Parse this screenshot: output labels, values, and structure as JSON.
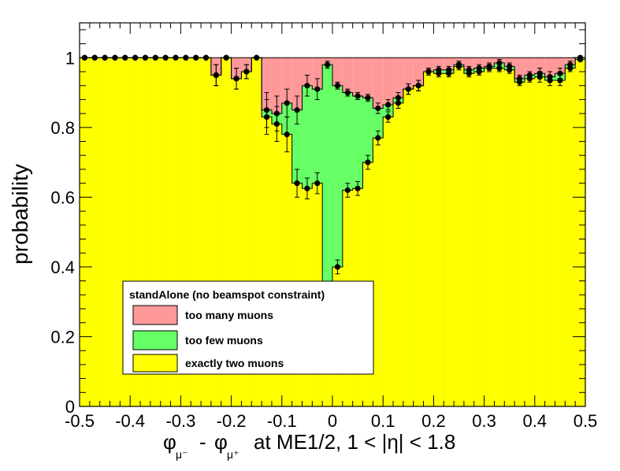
{
  "chart_data": {
    "type": "area",
    "xlabel": "at ME1/2, 1 < |η| < 1.8",
    "xlabel_phi_minus": "φ",
    "xlabel_mu_minus_sub": "μ⁻",
    "xlabel_dash": "-",
    "xlabel_phi_plus": "φ",
    "xlabel_mu_plus_sub": "μ⁺",
    "ylabel": "probability",
    "xlim": [
      -0.5,
      0.5
    ],
    "ylim": [
      0,
      1.1
    ],
    "x_ticks": [
      -0.5,
      -0.4,
      -0.3,
      -0.2,
      -0.1,
      0,
      0.1,
      0.2,
      0.3,
      0.4,
      0.5
    ],
    "x_tick_labels": [
      "-0.5",
      "-0.4",
      "-0.3",
      "-0.2",
      "-0.1",
      "0",
      "0.1",
      "0.2",
      "0.3",
      "0.4",
      "0.5"
    ],
    "y_ticks": [
      0,
      0.2,
      0.4,
      0.6,
      0.8,
      1
    ],
    "y_tick_labels": [
      "0",
      "0.2",
      "0.4",
      "0.6",
      "0.8",
      "1"
    ],
    "legend": {
      "title": "standAlone (no beamspot constraint)",
      "placement": "bottom-left",
      "entries": [
        {
          "label": "too many muons",
          "color": "#ff9999"
        },
        {
          "label": "too few muons",
          "color": "#66ff66"
        },
        {
          "label": "exactly two muons",
          "color": "#ffff00"
        }
      ]
    },
    "bin_width": 0.02,
    "x": [
      -0.49,
      -0.47,
      -0.45,
      -0.43,
      -0.41,
      -0.39,
      -0.37,
      -0.35,
      -0.33,
      -0.31,
      -0.29,
      -0.27,
      -0.25,
      -0.23,
      -0.21,
      -0.19,
      -0.17,
      -0.15,
      -0.13,
      -0.11,
      -0.09,
      -0.07,
      -0.05,
      -0.03,
      -0.01,
      0.01,
      0.03,
      0.05,
      0.07,
      0.09,
      0.11,
      0.13,
      0.15,
      0.17,
      0.19,
      0.21,
      0.23,
      0.25,
      0.27,
      0.29,
      0.31,
      0.33,
      0.35,
      0.37,
      0.39,
      0.41,
      0.43,
      0.45,
      0.47,
      0.49
    ],
    "series": [
      {
        "name": "exactly two muons",
        "color": "#ffff00",
        "values": [
          1,
          1,
          1,
          1,
          1,
          1,
          1,
          1,
          1,
          1,
          1,
          1,
          1,
          0.95,
          1,
          0.94,
          0.96,
          1,
          0.83,
          0.81,
          0.78,
          0.64,
          0.625,
          0.64,
          0.22,
          0.4,
          0.62,
          0.625,
          0.7,
          0.77,
          0.83,
          0.87,
          0.91,
          0.92,
          0.96,
          0.955,
          0.955,
          0.975,
          0.955,
          0.96,
          0.97,
          0.97,
          0.965,
          0.93,
          0.94,
          0.945,
          0.935,
          0.935,
          0.97,
          0.995
        ],
        "errors": [
          0,
          0,
          0,
          0,
          0,
          0,
          0,
          0,
          0,
          0,
          0,
          0,
          0,
          0.03,
          0,
          0.03,
          0.02,
          0,
          0.05,
          0.05,
          0.05,
          0.04,
          0.03,
          0.03,
          0.02,
          0.02,
          0.02,
          0.02,
          0.02,
          0.02,
          0.015,
          0.015,
          0.015,
          0.015,
          0.01,
          0.01,
          0.01,
          0.01,
          0.01,
          0.01,
          0.01,
          0.01,
          0.01,
          0.01,
          0.01,
          0.015,
          0.015,
          0.015,
          0.01,
          0.005
        ]
      },
      {
        "name": "too few muons",
        "color": "#66ff66",
        "values": [
          1,
          1,
          1,
          1,
          1,
          1,
          1,
          1,
          1,
          1,
          1,
          1,
          1,
          0.95,
          1,
          0.94,
          0.96,
          1,
          0.85,
          0.84,
          0.87,
          0.85,
          0.92,
          0.91,
          0.98,
          0.92,
          0.9,
          0.89,
          0.885,
          0.855,
          0.865,
          0.885,
          0.91,
          0.92,
          0.96,
          0.965,
          0.965,
          0.98,
          0.965,
          0.97,
          0.975,
          0.985,
          0.975,
          0.94,
          0.95,
          0.955,
          0.945,
          0.955,
          0.98,
          1
        ],
        "errors": [
          0,
          0,
          0,
          0,
          0,
          0,
          0,
          0,
          0,
          0,
          0,
          0,
          0,
          0.03,
          0,
          0.03,
          0.02,
          0,
          0.05,
          0.05,
          0.04,
          0.04,
          0.03,
          0.03,
          0.01,
          0.01,
          0.01,
          0.01,
          0.01,
          0.015,
          0.015,
          0.015,
          0.015,
          0.015,
          0.01,
          0.01,
          0.01,
          0.01,
          0.01,
          0.01,
          0.01,
          0.01,
          0.01,
          0.01,
          0.01,
          0.015,
          0.015,
          0.015,
          0.01,
          0.005
        ]
      },
      {
        "name": "too many muons",
        "color": "#ff9999",
        "values": [
          1,
          1,
          1,
          1,
          1,
          1,
          1,
          1,
          1,
          1,
          1,
          1,
          1,
          1,
          1,
          1,
          1,
          1,
          1,
          1,
          1,
          1,
          1,
          1,
          1,
          1,
          1,
          1,
          1,
          1,
          1,
          1,
          1,
          1,
          1,
          1,
          1,
          1,
          1,
          1,
          1,
          1,
          1,
          1,
          1,
          1,
          1,
          1,
          1,
          1
        ]
      }
    ],
    "colors": {
      "marker": "#000000",
      "frame": "#000000",
      "background": "#ffffff"
    }
  }
}
